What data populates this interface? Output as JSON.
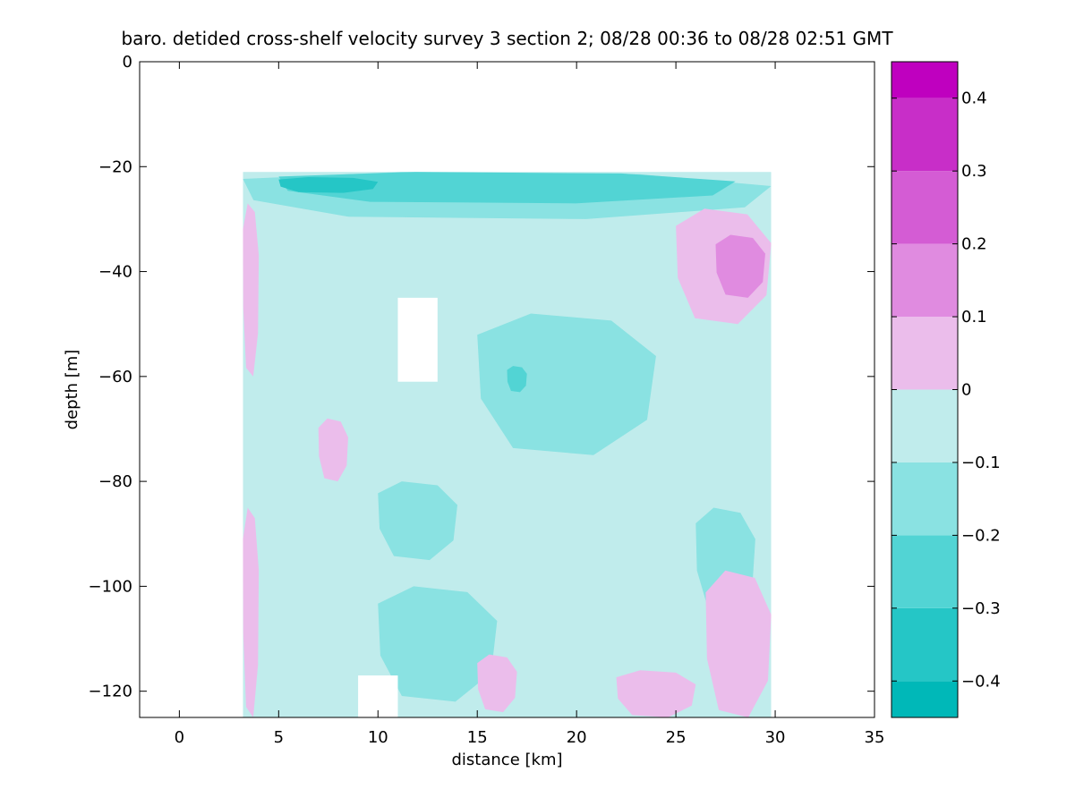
{
  "chart_data": {
    "type": "heatmap",
    "title": "baro. detided cross-shelf velocity survey 3 section 2; 08/28 00:36 to 08/28 02:51 GMT",
    "xlabel": "distance [km]",
    "ylabel": "depth [m]",
    "xlim": [
      -2,
      35
    ],
    "ylim": [
      -125,
      0
    ],
    "xticks": [
      0,
      5,
      10,
      15,
      20,
      25,
      30,
      35
    ],
    "yticks": [
      0,
      -20,
      -40,
      -60,
      -80,
      -100,
      -120
    ],
    "xtick_labels": [
      "0",
      "5",
      "10",
      "15",
      "20",
      "25",
      "30",
      "35"
    ],
    "ytick_labels": [
      "0",
      "−20",
      "−40",
      "−60",
      "−80",
      "−100",
      "−120"
    ],
    "data_extent": {
      "x": [
        3.2,
        29.8
      ],
      "depth": [
        -21,
        -125
      ]
    },
    "gaps": [
      {
        "x": [
          11,
          13
        ],
        "depth": [
          -45,
          -61
        ]
      },
      {
        "x": [
          9,
          11
        ],
        "depth": [
          -117,
          -125
        ]
      }
    ],
    "regions": [
      {
        "level": -0.05,
        "x": [
          3.2,
          29.8
        ],
        "depth": [
          -21,
          -125
        ]
      },
      {
        "level": -0.15,
        "x": [
          3.2,
          29.8
        ],
        "depth": [
          -21,
          -30
        ]
      },
      {
        "level": -0.25,
        "x": [
          5,
          28
        ],
        "depth": [
          -21,
          -27
        ]
      },
      {
        "level": -0.35,
        "x": [
          5,
          10
        ],
        "depth": [
          -22,
          -25
        ]
      },
      {
        "level": 0.05,
        "x": [
          3.2,
          4
        ],
        "depth": [
          -27,
          -60
        ]
      },
      {
        "level": 0.05,
        "x": [
          25,
          29.8
        ],
        "depth": [
          -28,
          -50
        ]
      },
      {
        "level": 0.15,
        "x": [
          27,
          29.5
        ],
        "depth": [
          -33,
          -45
        ]
      },
      {
        "level": -0.15,
        "x": [
          15,
          24
        ],
        "depth": [
          -48,
          -75
        ]
      },
      {
        "level": -0.25,
        "x": [
          16.5,
          17.5
        ],
        "depth": [
          -58,
          -63
        ]
      },
      {
        "level": -0.15,
        "x": [
          10,
          14
        ],
        "depth": [
          -80,
          -95
        ]
      },
      {
        "level": -0.15,
        "x": [
          10,
          16
        ],
        "depth": [
          -100,
          -122
        ]
      },
      {
        "level": -0.15,
        "x": [
          26,
          29
        ],
        "depth": [
          -85,
          -105
        ]
      },
      {
        "level": 0.05,
        "x": [
          3.2,
          4
        ],
        "depth": [
          -85,
          -125
        ]
      },
      {
        "level": 0.05,
        "x": [
          26.5,
          29.8
        ],
        "depth": [
          -97,
          -125
        ]
      },
      {
        "level": 0.05,
        "x": [
          22,
          26
        ],
        "depth": [
          -116,
          -125
        ]
      },
      {
        "level": 0.05,
        "x": [
          15,
          17
        ],
        "depth": [
          -113,
          -124
        ]
      },
      {
        "level": 0.05,
        "x": [
          7,
          8.5
        ],
        "depth": [
          -68,
          -80
        ]
      }
    ],
    "colorbar": {
      "levels": [
        -0.45,
        -0.35,
        -0.25,
        -0.15,
        -0.05,
        0.05,
        0.15,
        0.25,
        0.35,
        0.45
      ],
      "bounds": [
        -0.45,
        0.45
      ],
      "tick_values": [
        -0.4,
        -0.3,
        -0.2,
        -0.1,
        0,
        0.1,
        0.2,
        0.3,
        0.4
      ],
      "tick_labels": [
        "−0.4",
        "−0.3",
        "−0.2",
        "−0.1",
        "0",
        "0.1",
        "0.2",
        "0.3",
        "0.4"
      ],
      "band_edges": [
        -0.45,
        -0.4,
        -0.3,
        -0.2,
        -0.1,
        0,
        0.1,
        0.2,
        0.3,
        0.4,
        0.45
      ],
      "band_colors": [
        "#00b8b8",
        "#25c6c6",
        "#52d4d4",
        "#8ae2e2",
        "#c0ecec",
        "#ebbdeb",
        "#e08be0",
        "#d45cd4",
        "#c82ec8",
        "#bf00bf"
      ]
    },
    "grid": false
  }
}
